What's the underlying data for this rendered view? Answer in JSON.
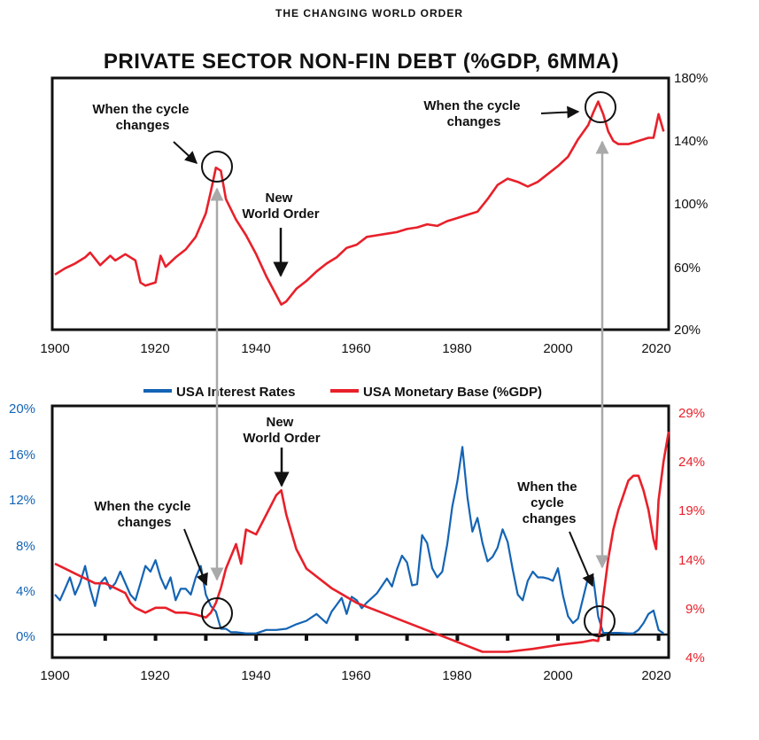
{
  "header": {
    "supertitle": "THE CHANGING WORLD ORDER"
  },
  "colors": {
    "red": "#e8202a",
    "blue": "#1464b4",
    "gray": "#a9a9a9",
    "black": "#111111"
  },
  "chart_data": [
    {
      "type": "line",
      "title": "PRIVATE SECTOR NON-FIN DEBT (%GDP, 6MMA)",
      "xlim": [
        1900,
        2022
      ],
      "ylim": [
        20,
        180
      ],
      "x_ticks": [
        "1900",
        "1920",
        "1940",
        "1960",
        "1980",
        "2000",
        "2020"
      ],
      "y_ticks": [
        "180%",
        "140%",
        "100%",
        "60%",
        "20%"
      ],
      "y_axis_side": "right",
      "series": [
        {
          "name": "Private Sector Non-Fin Debt (%GDP)",
          "color": "#e8202a",
          "x": [
            1900,
            1902,
            1904,
            1906,
            1907,
            1909,
            1911,
            1912,
            1914,
            1916,
            1917,
            1918,
            1920,
            1921,
            1922,
            1924,
            1926,
            1928,
            1930,
            1931,
            1932,
            1933,
            1934,
            1936,
            1938,
            1940,
            1942,
            1944,
            1945,
            1946,
            1948,
            1950,
            1952,
            1954,
            1956,
            1958,
            1960,
            1962,
            1964,
            1966,
            1968,
            1970,
            1972,
            1974,
            1976,
            1978,
            1980,
            1982,
            1984,
            1986,
            1988,
            1990,
            1992,
            1994,
            1996,
            1998,
            2000,
            2002,
            2004,
            2006,
            2007,
            2008,
            2009,
            2010,
            2011,
            2012,
            2014,
            2016,
            2018,
            2019,
            2020,
            2021
          ],
          "values": [
            55,
            59,
            62,
            66,
            69,
            61,
            67,
            64,
            68,
            64,
            50,
            48,
            50,
            67,
            60,
            66,
            71,
            79,
            94,
            108,
            123,
            121,
            103,
            90,
            80,
            68,
            54,
            42,
            36,
            38,
            46,
            51,
            57,
            62,
            66,
            72,
            74,
            79,
            80,
            81,
            82,
            84,
            85,
            87,
            86,
            89,
            91,
            93,
            95,
            103,
            112,
            116,
            114,
            111,
            114,
            119,
            124,
            130,
            141,
            150,
            158,
            165,
            157,
            146,
            140,
            138,
            138,
            140,
            142,
            142,
            157,
            146
          ]
        }
      ],
      "annotations": [
        {
          "text": [
            "When the cycle",
            "changes"
          ]
        },
        {
          "text": [
            "New",
            "World Order"
          ]
        },
        {
          "text": [
            "When the cycle",
            "changes"
          ]
        }
      ]
    },
    {
      "type": "line",
      "xlim": [
        1900,
        2022
      ],
      "x_ticks": [
        "1900",
        "1920",
        "1940",
        "1960",
        "1980",
        "2000",
        "2020"
      ],
      "left_axis": {
        "ylim": [
          -1.5,
          20
        ],
        "ticks": [
          "20%",
          "16%",
          "12%",
          "8%",
          "4%",
          "0%"
        ]
      },
      "right_axis": {
        "ylim": [
          4,
          29
        ],
        "ticks": [
          "29%",
          "24%",
          "19%",
          "14%",
          "9%",
          "4%"
        ]
      },
      "legend": [
        "USA Interest Rates",
        "USA Monetary Base (%GDP)"
      ],
      "series": [
        {
          "name": "USA Interest Rates",
          "color": "#1464b4",
          "axis": "left",
          "x": [
            1900,
            1901,
            1902,
            1903,
            1904,
            1905,
            1906,
            1907,
            1908,
            1909,
            1910,
            1911,
            1912,
            1913,
            1914,
            1915,
            1916,
            1917,
            1918,
            1919,
            1920,
            1921,
            1922,
            1923,
            1924,
            1925,
            1926,
            1927,
            1928,
            1929,
            1930,
            1931,
            1932,
            1933,
            1934,
            1935,
            1936,
            1938,
            1940,
            1942,
            1944,
            1946,
            1948,
            1950,
            1952,
            1954,
            1955,
            1956,
            1957,
            1958,
            1959,
            1960,
            1961,
            1962,
            1964,
            1966,
            1967,
            1968,
            1969,
            1970,
            1971,
            1972,
            1973,
            1974,
            1975,
            1976,
            1977,
            1978,
            1979,
            1980,
            1981,
            1982,
            1983,
            1984,
            1985,
            1986,
            1987,
            1988,
            1989,
            1990,
            1991,
            1992,
            1993,
            1994,
            1995,
            1996,
            1997,
            1998,
            1999,
            2000,
            2001,
            2002,
            2003,
            2004,
            2005,
            2006,
            2007,
            2008,
            2009,
            2010,
            2012,
            2014,
            2015,
            2016,
            2017,
            2018,
            2019,
            2020,
            2021
          ],
          "values": [
            3.5,
            3,
            4,
            5,
            3.5,
            4.5,
            6,
            4,
            2.5,
            4.5,
            5,
            4,
            4.5,
            5.5,
            4.5,
            3.5,
            3,
            4.5,
            6,
            5.5,
            6.5,
            5,
            4,
            5,
            3,
            4,
            4,
            3.5,
            5,
            6,
            3.5,
            2.5,
            2,
            0.5,
            0.5,
            0.2,
            0.2,
            0.1,
            0.1,
            0.4,
            0.4,
            0.5,
            0.9,
            1.2,
            1.8,
            1,
            2,
            2.6,
            3.2,
            1.8,
            3.3,
            3,
            2.3,
            2.8,
            3.6,
            4.9,
            4.2,
            5.7,
            6.9,
            6.3,
            4.3,
            4.4,
            8.7,
            8,
            5.8,
            5,
            5.5,
            7.9,
            11.2,
            13.4,
            16.4,
            12,
            9,
            10.2,
            8,
            6.4,
            6.8,
            7.6,
            9.2,
            8.1,
            5.7,
            3.5,
            3,
            4.7,
            5.5,
            5,
            5,
            4.9,
            4.7,
            5.8,
            3.4,
            1.6,
            1,
            1.4,
            3.2,
            5,
            5,
            1.6,
            0.15,
            0.15,
            0.15,
            0.1,
            0.1,
            0.4,
            1,
            1.8,
            2.1,
            0.4,
            0.1
          ]
        },
        {
          "name": "USA Monetary Base (%GDP)",
          "color": "#e8202a",
          "axis": "right",
          "x": [
            1900,
            1902,
            1904,
            1906,
            1908,
            1910,
            1912,
            1914,
            1915,
            1916,
            1918,
            1920,
            1922,
            1924,
            1926,
            1928,
            1930,
            1931,
            1932,
            1933,
            1934,
            1936,
            1937,
            1938,
            1940,
            1942,
            1944,
            1945,
            1946,
            1948,
            1950,
            1955,
            1960,
            1965,
            1970,
            1975,
            1980,
            1985,
            1990,
            1995,
            2000,
            2005,
            2007,
            2008,
            2008.5,
            2009,
            2010,
            2011,
            2012,
            2014,
            2015,
            2016,
            2017,
            2018,
            2019,
            2019.5,
            2020,
            2021,
            2022
          ],
          "values": [
            13.5,
            13,
            12.5,
            12,
            11.5,
            11.5,
            11,
            10.5,
            9.5,
            9,
            8.5,
            9,
            9,
            8.5,
            8.5,
            8.3,
            8,
            8.5,
            9.5,
            11,
            13,
            15.5,
            13.5,
            17,
            16.5,
            18.5,
            20.5,
            21,
            18.5,
            15,
            13,
            11,
            9.5,
            8.5,
            7.5,
            6.5,
            5.5,
            4.5,
            4.5,
            4.8,
            5.2,
            5.5,
            5.7,
            5.6,
            7,
            10,
            14,
            17,
            19,
            22,
            22.5,
            22.5,
            21,
            19,
            16,
            15,
            20,
            24,
            27
          ]
        }
      ],
      "annotations": [
        {
          "text": [
            "When the cycle",
            "changes"
          ]
        },
        {
          "text": [
            "New",
            "World Order"
          ]
        },
        {
          "text": [
            "When the",
            "cycle",
            "changes"
          ]
        }
      ]
    }
  ]
}
